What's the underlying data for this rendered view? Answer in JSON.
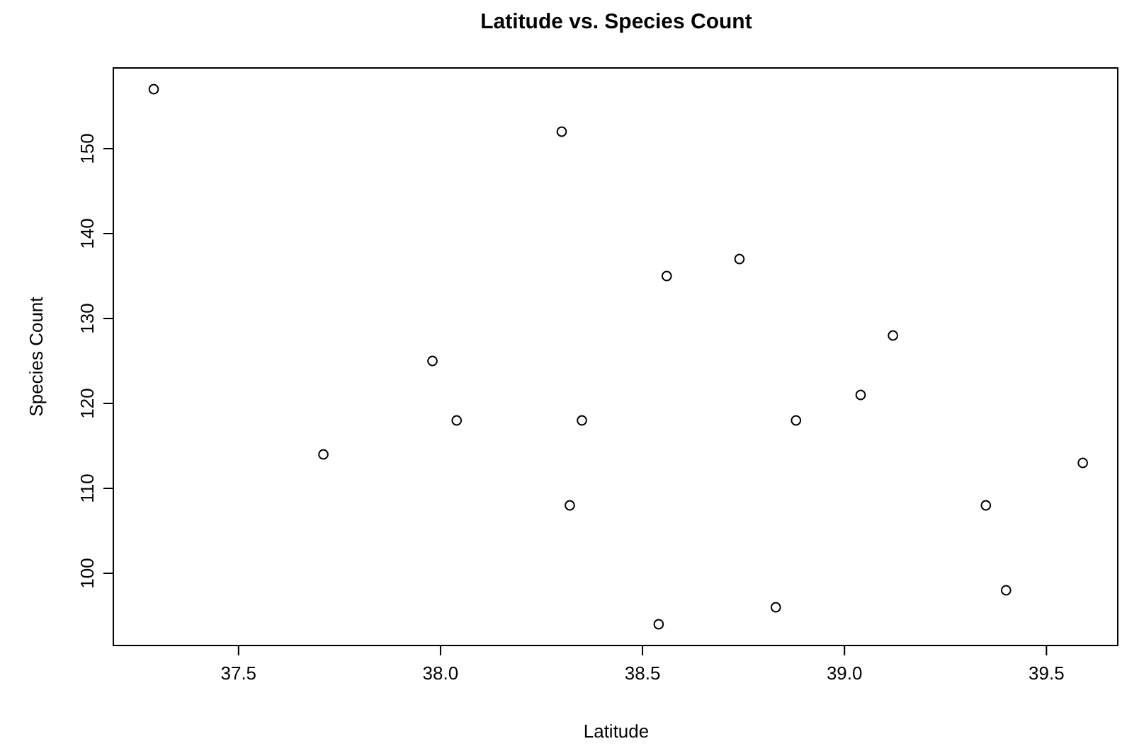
{
  "chart_data": {
    "type": "scatter",
    "title": "Latitude vs. Species Count",
    "xlabel": "Latitude",
    "ylabel": "Species Count",
    "x": [
      37.29,
      37.71,
      37.98,
      38.04,
      38.3,
      38.32,
      38.35,
      38.56,
      38.54,
      38.74,
      38.83,
      38.88,
      39.04,
      39.12,
      39.35,
      39.4,
      39.59
    ],
    "values": [
      157,
      114,
      125,
      118,
      152,
      108,
      118,
      135,
      94,
      137,
      96,
      118,
      121,
      128,
      108,
      98,
      113
    ],
    "color": "#000000",
    "marker": "circle",
    "xlim": [
      37.19,
      39.68
    ],
    "ylim": [
      91.5,
      159.5
    ],
    "xticks": [
      {
        "value": 37.5,
        "label": "37.5"
      },
      {
        "value": 38,
        "label": "38.0"
      },
      {
        "value": 38.5,
        "label": "38.5"
      },
      {
        "value": 39,
        "label": "39.0"
      },
      {
        "value": 39.5,
        "label": "39.5"
      }
    ],
    "yticks": [
      100,
      110,
      120,
      130,
      140,
      150
    ],
    "grid": false
  }
}
